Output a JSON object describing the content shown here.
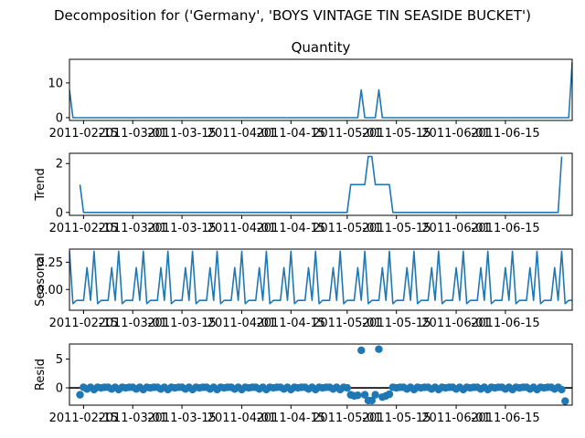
{
  "figure": {
    "title": "Decomposition for ('Germany', 'BOYS VINTAGE TIN SEASIDE BUCKET')"
  },
  "colors": {
    "series": "#1f77b4",
    "axes": "#000000",
    "zero_line": "#000000"
  },
  "chart_data": [
    {
      "type": "line",
      "panel": "observed",
      "title": "Quantity",
      "ylabel": "",
      "x_start": "2011-02-11",
      "x_step_days": 1,
      "ylim": [
        -0.8,
        16.8
      ],
      "yticks": [
        0,
        10
      ],
      "xticks": [
        "2011-02-15",
        "2011-03-01",
        "2011-03-15",
        "2011-04-01",
        "2011-04-15",
        "2011-05-01",
        "2011-05-15",
        "2011-06-01",
        "2011-06-15"
      ],
      "points": [
        {
          "day": 0,
          "value": 8
        },
        {
          "day": 1,
          "value": 0
        },
        {
          "day": 82,
          "value": 0
        },
        {
          "day": 83,
          "value": 8
        },
        {
          "day": 84,
          "value": 0
        },
        {
          "day": 87,
          "value": 0
        },
        {
          "day": 88,
          "value": 8
        },
        {
          "day": 89,
          "value": 0
        },
        {
          "day": 142,
          "value": 0
        },
        {
          "day": 143,
          "value": 16
        }
      ]
    },
    {
      "type": "line",
      "panel": "trend",
      "title": "",
      "ylabel": "Trend",
      "ylim": [
        -0.12,
        2.42
      ],
      "yticks": [
        0,
        2
      ],
      "xticks": [
        "2011-02-15",
        "2011-03-01",
        "2011-03-15",
        "2011-04-01",
        "2011-04-15",
        "2011-05-01",
        "2011-05-15",
        "2011-06-01",
        "2011-06-15"
      ],
      "points": [
        {
          "day": 3,
          "value": 1.14
        },
        {
          "day": 4,
          "value": 0
        },
        {
          "day": 79,
          "value": 0
        },
        {
          "day": 80,
          "value": 1.14
        },
        {
          "day": 84,
          "value": 1.14
        },
        {
          "day": 85,
          "value": 2.29
        },
        {
          "day": 86,
          "value": 2.29
        },
        {
          "day": 87,
          "value": 1.14
        },
        {
          "day": 91,
          "value": 1.14
        },
        {
          "day": 92,
          "value": 0
        },
        {
          "day": 139,
          "value": 0
        },
        {
          "day": 140,
          "value": 2.29
        }
      ]
    },
    {
      "type": "line",
      "panel": "seasonal",
      "title": "",
      "ylabel": "Seasonal",
      "ylim": [
        -0.19,
        0.37
      ],
      "yticks": [
        -0.0,
        0.25
      ],
      "ytick_labels": [
        "0.00",
        "0.25"
      ],
      "xticks": [
        "2011-02-15",
        "2011-03-01",
        "2011-03-15",
        "2011-04-01",
        "2011-04-15",
        "2011-05-01",
        "2011-05-15",
        "2011-06-01",
        "2011-06-15"
      ],
      "period_days": 7,
      "pattern": [
        0.35,
        -0.13,
        -0.1,
        -0.1,
        -0.1,
        0.2,
        -0.1
      ]
    },
    {
      "type": "scatter",
      "panel": "resid",
      "title": "",
      "ylabel": "Resid",
      "ylim": [
        -3,
        7.6
      ],
      "yticks": [
        0,
        5
      ],
      "xticks": [
        "2011-02-15",
        "2011-03-01",
        "2011-03-15",
        "2011-04-01",
        "2011-04-15",
        "2011-05-01",
        "2011-05-15",
        "2011-06-01",
        "2011-06-15"
      ],
      "zero_line": true,
      "baseline_pattern": [
        -0.3,
        0.1,
        0.0,
        0.1,
        0.1,
        -0.2,
        0.1
      ],
      "outliers": [
        {
          "day": 3,
          "value": -1.2
        },
        {
          "day": 80,
          "value": -1.2
        },
        {
          "day": 81,
          "value": -1.4
        },
        {
          "day": 82,
          "value": -1.3
        },
        {
          "day": 83,
          "value": 6.5
        },
        {
          "day": 84,
          "value": -1.2
        },
        {
          "day": 85,
          "value": -2.2
        },
        {
          "day": 86,
          "value": -2.2
        },
        {
          "day": 87,
          "value": -1.2
        },
        {
          "day": 88,
          "value": 6.7
        },
        {
          "day": 89,
          "value": -1.6
        },
        {
          "day": 90,
          "value": -1.4
        },
        {
          "day": 91,
          "value": -1.1
        },
        {
          "day": 141,
          "value": -2.3
        }
      ]
    }
  ]
}
